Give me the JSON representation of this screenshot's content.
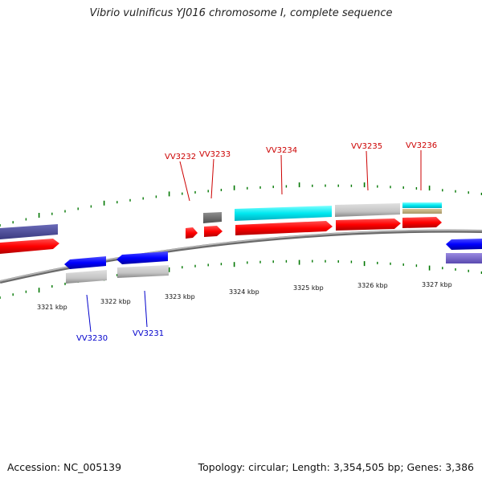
{
  "header": {
    "title": "Vibrio vulnificus YJ016 chromosome I, complete sequence"
  },
  "footer": {
    "accession": "Accession: NC_005139",
    "summary": "Topology: circular; Length: 3,354,505 bp; Genes: 3,386"
  },
  "colors": {
    "forward_cds": "#ff0000",
    "reverse_cds": "#0000ff",
    "gene_feature": "#c0c0c0",
    "fwd_label": "#cc0000",
    "rev_label": "#0000cc",
    "cyan_feature": "#00e5ee",
    "tick": "#007700",
    "backbone": "#888888"
  },
  "ticks": {
    "labels": [
      "3321 kbp",
      "3322 kbp",
      "3323 kbp",
      "3324 kbp",
      "3325 kbp",
      "3326 kbp",
      "3327 kbp"
    ]
  },
  "genes": {
    "forward": [
      "VV3232",
      "VV3233",
      "VV3234",
      "VV3235",
      "VV3236"
    ],
    "reverse": [
      "VV3230",
      "VV3231"
    ]
  }
}
